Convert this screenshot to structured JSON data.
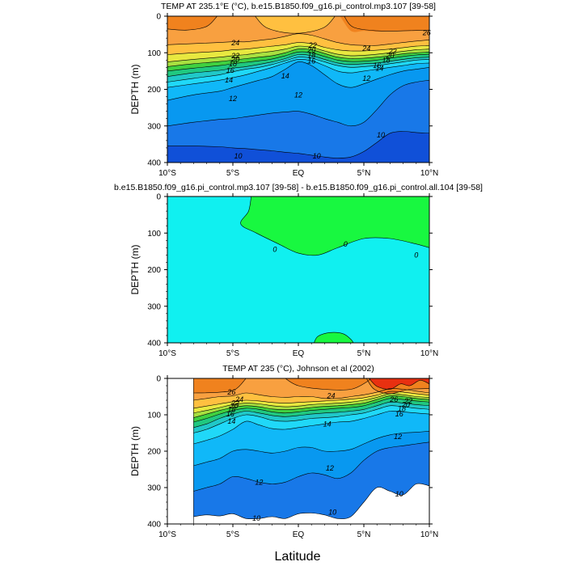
{
  "figure": {
    "xlabel": "Latitude"
  },
  "colors": {
    "warm_deep": "#F0821E",
    "warm": "#F8A040",
    "warm_light": "#FFC040",
    "yellow": "#E8E840",
    "yellow_green": "#A8E040",
    "green": "#40D040",
    "teal_green": "#20C880",
    "teal": "#20C8C8",
    "cyan": "#20D8F8",
    "sky": "#10B8F8",
    "blue": "#0898F0",
    "mid_blue": "#1878E8",
    "dark_blue": "#1050D8",
    "red": "#E83010",
    "diff_zero": "#10F0F0",
    "diff_pos": "#18F840"
  },
  "chart_data": [
    {
      "type": "heatmap",
      "title": "TEMP AT 235.1°E (°C), b.e15.B1850.f09_g16.pi_control.mp3.107 [39-58]",
      "ylabel": "DEPTH (m)",
      "xticks": [
        "10°S",
        "5°S",
        "EQ",
        "5°N",
        "10°N"
      ],
      "xlim": [
        -10,
        10
      ],
      "yticks": [
        "0",
        "100",
        "200",
        "300",
        "400"
      ],
      "ylim": [
        0,
        400
      ],
      "y_inverted": true,
      "contour_labels": [
        {
          "text": "24",
          "x": -4.8,
          "y": 73
        },
        {
          "text": "26",
          "x": 9.8,
          "y": 45
        },
        {
          "text": "24",
          "x": 5.2,
          "y": 88
        },
        {
          "text": "22",
          "x": -4.8,
          "y": 108
        },
        {
          "text": "20",
          "x": -4.8,
          "y": 118
        },
        {
          "text": "18",
          "x": -5.0,
          "y": 130
        },
        {
          "text": "16",
          "x": -5.2,
          "y": 148
        },
        {
          "text": "14",
          "x": -5.3,
          "y": 175
        },
        {
          "text": "12",
          "x": -5.0,
          "y": 225
        },
        {
          "text": "22",
          "x": 1.1,
          "y": 80
        },
        {
          "text": "20",
          "x": 1.0,
          "y": 93
        },
        {
          "text": "18",
          "x": 1.0,
          "y": 107
        },
        {
          "text": "16",
          "x": 1.0,
          "y": 123
        },
        {
          "text": "14",
          "x": -1.0,
          "y": 163
        },
        {
          "text": "12",
          "x": 0.0,
          "y": 215
        },
        {
          "text": "22",
          "x": 7.2,
          "y": 96
        },
        {
          "text": "20",
          "x": 7.0,
          "y": 108
        },
        {
          "text": "18",
          "x": 6.7,
          "y": 120
        },
        {
          "text": "16",
          "x": 6.0,
          "y": 135
        },
        {
          "text": "14",
          "x": 6.2,
          "y": 142
        },
        {
          "text": "12",
          "x": 5.2,
          "y": 170
        },
        {
          "text": "10",
          "x": -4.6,
          "y": 382
        },
        {
          "text": "10",
          "x": 1.4,
          "y": 382
        },
        {
          "text": "10",
          "x": 6.3,
          "y": 325
        }
      ]
    },
    {
      "type": "heatmap",
      "title": "b.e15.B1850.f09_g16.pi_control.mp3.107 [39-58] - b.e15.B1850.f09_g16.pi_control.all.104 [39-58]",
      "ylabel": "DEPTH (m)",
      "xticks": [
        "10°S",
        "5°S",
        "EQ",
        "5°N",
        "10°N"
      ],
      "xlim": [
        -10,
        10
      ],
      "yticks": [
        "0",
        "100",
        "200",
        "300",
        "400"
      ],
      "ylim": [
        0,
        400
      ],
      "y_inverted": true,
      "contour_labels": [
        {
          "text": "0",
          "x": -1.8,
          "y": 145
        },
        {
          "text": "0",
          "x": 3.6,
          "y": 130
        },
        {
          "text": "0",
          "x": 9.0,
          "y": 160
        }
      ]
    },
    {
      "type": "heatmap",
      "title": "TEMP AT 235 (°C), Johnson et al (2002)",
      "ylabel": "DEPTH (m)",
      "xticks": [
        "10°S",
        "5°S",
        "EQ",
        "5°N",
        "10°N"
      ],
      "xlim": [
        -10,
        10
      ],
      "yticks": [
        "0",
        "100",
        "200",
        "300",
        "400"
      ],
      "ylim": [
        0,
        400
      ],
      "y_inverted": true,
      "data_xlim": [
        -8,
        10
      ],
      "contour_labels": [
        {
          "text": "26",
          "x": -5.1,
          "y": 38
        },
        {
          "text": "24",
          "x": -4.5,
          "y": 58
        },
        {
          "text": "22",
          "x": -4.8,
          "y": 68
        },
        {
          "text": "20",
          "x": -4.9,
          "y": 75
        },
        {
          "text": "18",
          "x": -5.1,
          "y": 85
        },
        {
          "text": "16",
          "x": -5.2,
          "y": 98
        },
        {
          "text": "14",
          "x": -5.1,
          "y": 118
        },
        {
          "text": "24",
          "x": 2.5,
          "y": 48
        },
        {
          "text": "14",
          "x": 2.2,
          "y": 125
        },
        {
          "text": "26",
          "x": 7.3,
          "y": 58
        },
        {
          "text": "22",
          "x": 8.4,
          "y": 62
        },
        {
          "text": "20",
          "x": 8.2,
          "y": 72
        },
        {
          "text": "18",
          "x": 7.9,
          "y": 83
        },
        {
          "text": "16",
          "x": 7.7,
          "y": 98
        },
        {
          "text": "12",
          "x": 7.6,
          "y": 160
        },
        {
          "text": "12",
          "x": 2.4,
          "y": 247
        },
        {
          "text": "12",
          "x": -3.0,
          "y": 285
        },
        {
          "text": "10",
          "x": 2.6,
          "y": 368
        },
        {
          "text": "10",
          "x": -3.2,
          "y": 384
        },
        {
          "text": "10",
          "x": 7.7,
          "y": 318
        }
      ]
    }
  ]
}
